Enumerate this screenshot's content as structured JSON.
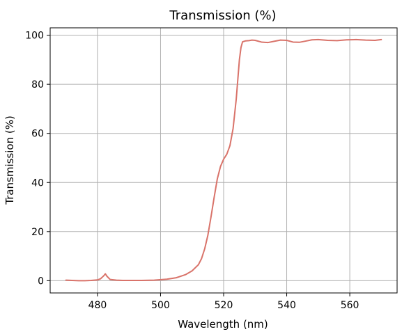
{
  "chart_data": {
    "type": "line",
    "title": "Transmission (%)",
    "xlabel": "Wavelength (nm)",
    "ylabel": "Transmission (%)",
    "xlim": [
      465,
      575
    ],
    "ylim": [
      -5,
      103
    ],
    "xticks": [
      480,
      500,
      520,
      540,
      560
    ],
    "yticks": [
      0,
      20,
      40,
      60,
      80,
      100
    ],
    "grid": true,
    "series": [
      {
        "color": "#d9736a",
        "x": [
          470,
          472,
          474,
          476,
          478,
          480,
          481,
          482,
          482.5,
          483,
          484,
          486,
          488,
          490,
          494,
          498,
          502,
          505,
          508,
          510,
          512,
          513,
          514,
          515,
          516,
          517,
          518,
          519,
          520,
          521,
          522,
          523,
          524,
          524.5,
          525,
          525.5,
          526,
          527,
          528,
          529,
          530,
          532,
          534,
          536,
          538,
          540,
          542,
          544,
          546,
          548,
          550,
          553,
          556,
          559,
          562,
          565,
          568,
          570
        ],
        "y": [
          0.2,
          0.1,
          0.0,
          0.0,
          0.1,
          0.3,
          0.8,
          2.0,
          2.8,
          1.8,
          0.5,
          0.2,
          0.1,
          0.1,
          0.1,
          0.2,
          0.6,
          1.2,
          2.5,
          4.0,
          6.5,
          9.0,
          13.0,
          18.5,
          26.0,
          34.0,
          41.5,
          46.5,
          49.5,
          51.5,
          55.0,
          62.0,
          74.0,
          82.0,
          90.0,
          95.0,
          97.3,
          97.7,
          97.8,
          98.0,
          97.9,
          97.2,
          97.0,
          97.5,
          98.0,
          97.9,
          97.2,
          97.1,
          97.6,
          98.1,
          98.2,
          97.9,
          97.8,
          98.1,
          98.2,
          98.0,
          97.9,
          98.2
        ]
      }
    ]
  }
}
